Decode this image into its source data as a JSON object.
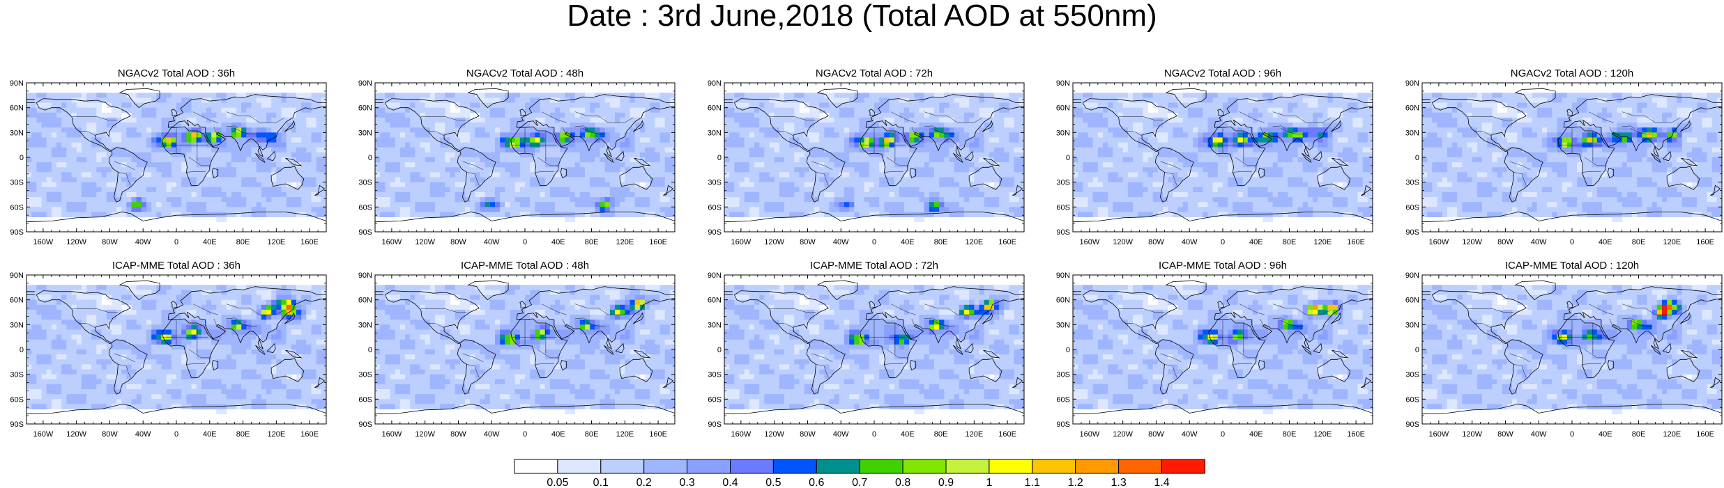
{
  "title": "Date : 3rd June,2018 (Total AOD at 550nm)",
  "colors": {
    "ocean": "#dfe8ff",
    "land": "#ffffff",
    "coast": "#000000"
  },
  "lat_ticks": [
    "90N",
    "60N",
    "30N",
    "0",
    "30S",
    "60S",
    "90S"
  ],
  "lon_ticks": [
    "160W",
    "120W",
    "80W",
    "40W",
    "0",
    "40E",
    "80E",
    "120E",
    "160E"
  ],
  "lon_tick_values": [
    -160,
    -120,
    -80,
    -40,
    0,
    40,
    80,
    120,
    160
  ],
  "lat_tick_values": [
    90,
    60,
    30,
    0,
    -30,
    -60,
    -90
  ],
  "panels": [
    {
      "title": "NGACv2 Total AOD : 36h",
      "model": "NGACv2",
      "lead": "36h",
      "hotspots": [
        [
          -10,
          20,
          1.0
        ],
        [
          20,
          25,
          0.9
        ],
        [
          45,
          25,
          0.8
        ],
        [
          75,
          30,
          0.9
        ],
        [
          -45,
          -57,
          0.8
        ],
        [
          110,
          25,
          0.6
        ]
      ]
    },
    {
      "title": "NGACv2 Total AOD : 48h",
      "model": "NGACv2",
      "lead": "48h",
      "hotspots": [
        [
          -15,
          18,
          0.9
        ],
        [
          10,
          20,
          1.0
        ],
        [
          50,
          25,
          0.8
        ],
        [
          80,
          28,
          0.9
        ],
        [
          -40,
          -57,
          0.7
        ],
        [
          95,
          -57,
          0.7
        ]
      ]
    },
    {
      "title": "NGACv2 Total AOD : 72h",
      "model": "NGACv2",
      "lead": "72h",
      "hotspots": [
        [
          -10,
          18,
          0.9
        ],
        [
          15,
          20,
          1.0
        ],
        [
          50,
          25,
          0.8
        ],
        [
          80,
          28,
          0.9
        ],
        [
          -35,
          -57,
          0.6
        ],
        [
          75,
          -60,
          0.7
        ]
      ]
    },
    {
      "title": "NGACv2 Total AOD : 96h",
      "model": "NGACv2",
      "lead": "96h",
      "hotspots": [
        [
          -5,
          20,
          1.0
        ],
        [
          25,
          20,
          0.9
        ],
        [
          55,
          25,
          0.9
        ],
        [
          85,
          28,
          1.0
        ],
        [
          115,
          30,
          0.7
        ]
      ]
    },
    {
      "title": "NGACv2 Total AOD : 120h",
      "model": "NGACv2",
      "lead": "120h",
      "hotspots": [
        [
          -5,
          18,
          0.9
        ],
        [
          25,
          20,
          1.0
        ],
        [
          60,
          25,
          0.9
        ],
        [
          90,
          28,
          1.0
        ],
        [
          120,
          28,
          0.7
        ]
      ]
    },
    {
      "title": "ICAP-MME Total AOD : 36h",
      "model": "ICAP-MME",
      "lead": "36h",
      "hotspots": [
        [
          -15,
          15,
          0.9
        ],
        [
          20,
          20,
          0.8
        ],
        [
          75,
          28,
          0.8
        ],
        [
          110,
          45,
          1.0
        ],
        [
          130,
          55,
          1.4
        ],
        [
          140,
          45,
          1.2
        ]
      ]
    },
    {
      "title": "ICAP-MME Total AOD : 48h",
      "model": "ICAP-MME",
      "lead": "48h",
      "hotspots": [
        [
          -20,
          12,
          0.9
        ],
        [
          20,
          18,
          0.8
        ],
        [
          75,
          28,
          0.8
        ],
        [
          115,
          45,
          1.1
        ],
        [
          135,
          55,
          1.3
        ]
      ]
    },
    {
      "title": "ICAP-MME Total AOD : 72h",
      "model": "ICAP-MME",
      "lead": "72h",
      "hotspots": [
        [
          -20,
          12,
          0.9
        ],
        [
          30,
          12,
          0.9
        ],
        [
          75,
          28,
          0.9
        ],
        [
          115,
          45,
          1.1
        ],
        [
          140,
          52,
          1.4
        ]
      ]
    },
    {
      "title": "ICAP-MME Total AOD : 96h",
      "model": "ICAP-MME",
      "lead": "96h",
      "hotspots": [
        [
          -15,
          15,
          0.9
        ],
        [
          20,
          15,
          0.8
        ],
        [
          80,
          30,
          0.9
        ],
        [
          110,
          48,
          1.2
        ],
        [
          130,
          50,
          1.4
        ]
      ]
    },
    {
      "title": "ICAP-MME Total AOD : 120h",
      "model": "ICAP-MME",
      "lead": "120h",
      "hotspots": [
        [
          -10,
          15,
          0.8
        ],
        [
          25,
          15,
          0.9
        ],
        [
          80,
          30,
          0.9
        ],
        [
          110,
          45,
          1.2
        ],
        [
          120,
          52,
          1.4
        ]
      ]
    }
  ],
  "colorbar": {
    "labels": [
      "0.05",
      "0.1",
      "0.2",
      "0.3",
      "0.4",
      "0.5",
      "0.6",
      "0.7",
      "0.8",
      "0.9",
      "1",
      "1.1",
      "1.2",
      "1.3",
      "1.4"
    ],
    "colors": [
      "#ffffff",
      "#dde7ff",
      "#bccfff",
      "#9fb6ff",
      "#8aa0ff",
      "#6b7bff",
      "#0055ff",
      "#008f8f",
      "#3fd200",
      "#82e600",
      "#c4f23d",
      "#ffff00",
      "#ffc400",
      "#ff9a00",
      "#ff6600",
      "#ff1a00"
    ]
  }
}
